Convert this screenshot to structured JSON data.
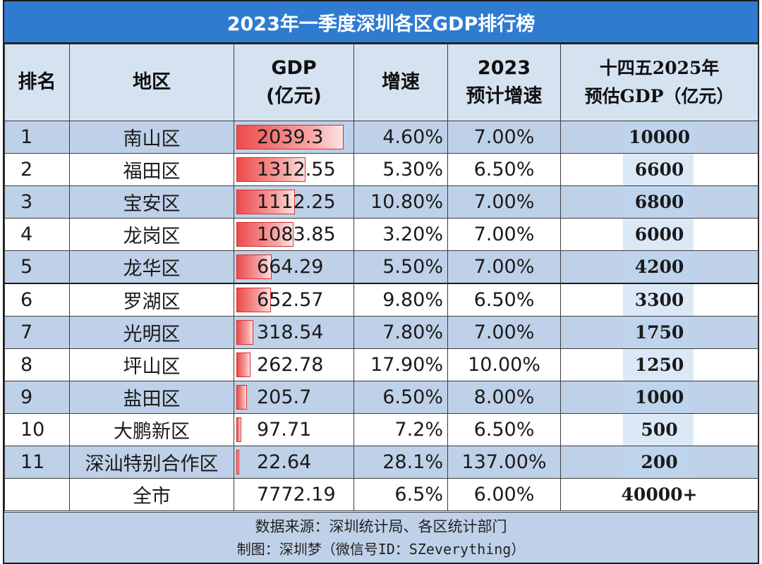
{
  "title": "2023年一季度深圳各区GDP排行榜",
  "headers": {
    "rank": "排名",
    "district": "地区",
    "gdp_line1": "GDP",
    "gdp_line2": "(亿元)",
    "growth": "增速",
    "forecast_line1": "2023",
    "forecast_line2": "预计增速",
    "target_line1": "十四五2025年",
    "target_line2": "预估GDP（亿元）"
  },
  "rows": [
    {
      "rank": "1",
      "district": "南山区",
      "gdp": "2039.3",
      "growth": "4.60%",
      "forecast": "7.00%",
      "target": "10000"
    },
    {
      "rank": "2",
      "district": "福田区",
      "gdp": "1312.55",
      "growth": "5.30%",
      "forecast": "6.50%",
      "target": "6600"
    },
    {
      "rank": "3",
      "district": "宝安区",
      "gdp": "1112.25",
      "growth": "10.80%",
      "forecast": "7.00%",
      "target": "6800"
    },
    {
      "rank": "4",
      "district": "龙岗区",
      "gdp": "1083.85",
      "growth": "3.20%",
      "forecast": "7.00%",
      "target": "6000"
    },
    {
      "rank": "5",
      "district": "龙华区",
      "gdp": "664.29",
      "growth": "5.50%",
      "forecast": "7.00%",
      "target": "4200"
    },
    {
      "rank": "6",
      "district": "罗湖区",
      "gdp": "652.57",
      "growth": "9.80%",
      "forecast": "6.50%",
      "target": "3300"
    },
    {
      "rank": "7",
      "district": "光明区",
      "gdp": "318.54",
      "growth": "7.80%",
      "forecast": "7.00%",
      "target": "1750"
    },
    {
      "rank": "8",
      "district": "坪山区",
      "gdp": "262.78",
      "growth": "17.90%",
      "forecast": "10.00%",
      "target": "1250"
    },
    {
      "rank": "9",
      "district": "盐田区",
      "gdp": "205.7",
      "growth": "6.50%",
      "forecast": "8.00%",
      "target": "1000"
    },
    {
      "rank": "10",
      "district": "大鹏新区",
      "gdp": "97.71",
      "growth": "7.2%",
      "forecast": "6.50%",
      "target": "500"
    },
    {
      "rank": "11",
      "district": "深汕特别合作区",
      "gdp": "22.64",
      "growth": "28.1%",
      "forecast": "137.00%",
      "target": "200"
    }
  ],
  "total": {
    "rank": "",
    "district": "全市",
    "gdp": "7772.19",
    "growth": "6.5%",
    "forecast": "6.00%",
    "target": "40000+"
  },
  "footer": {
    "source": "数据来源：深圳统计局、各区统计部门",
    "credit": "制图：深圳梦（微信号ID：SZeverything）"
  },
  "colors": {
    "title_bg": "#2f7bd0",
    "header_bg": "#d5e3f1",
    "stripe": "#bfd1e8",
    "bar": "#ec4b4b"
  }
}
